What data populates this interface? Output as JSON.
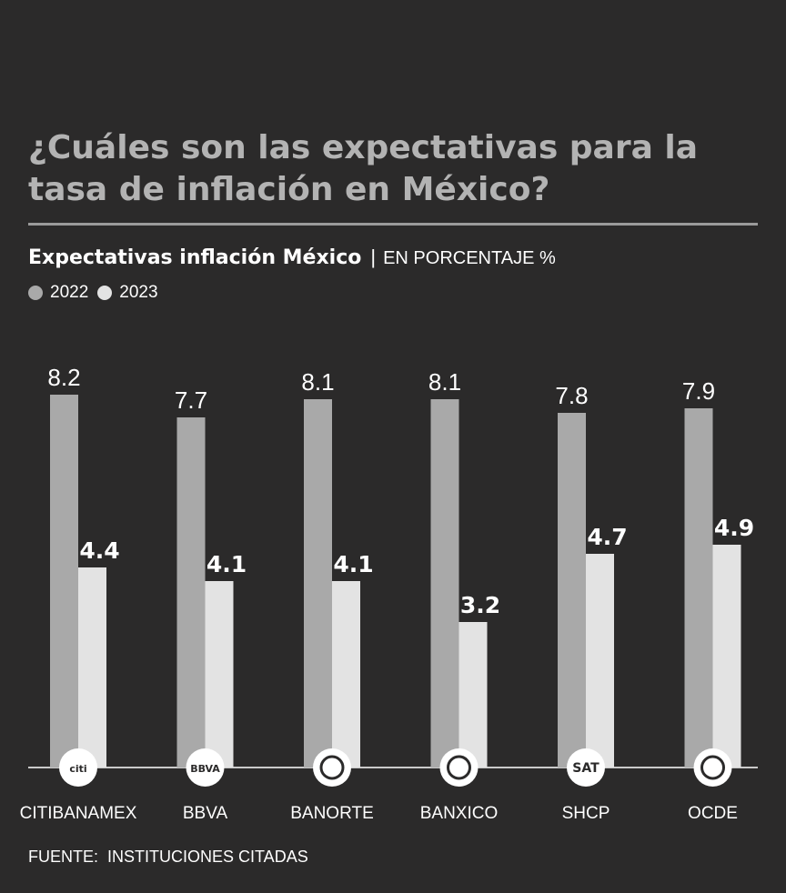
{
  "header": {
    "title": "¿Cuáles son las expectativas para la tasa de inflación en México?",
    "subtitle_strong": "Expectativas inflación México",
    "subtitle_sep": "|",
    "subtitle_unit": "EN PORCENTAJE %"
  },
  "legend": {
    "items": [
      {
        "label": "2022",
        "color": "#a9a9a9"
      },
      {
        "label": "2023",
        "color": "#e3e3e3"
      }
    ]
  },
  "footer": {
    "source_label": "FUENTE:",
    "source_text": "INSTITUCIONES CITADAS"
  },
  "colors": {
    "background": "#2b2a2a",
    "bar_2022": "#a9a9a9",
    "bar_2023": "#e3e3e3",
    "title": "#b3b3b3",
    "text": "#ffffff"
  },
  "chart_data": {
    "type": "bar",
    "title": "Expectativas inflación México",
    "ylabel": "EN PORCENTAJE %",
    "xlabel": "",
    "ylim": [
      0,
      8.2
    ],
    "grid": false,
    "legend_position": "top-left",
    "categories": [
      "CITIBANAMEX",
      "BBVA",
      "BANORTE",
      "BANXICO",
      "SHCP",
      "OCDE"
    ],
    "category_icons": [
      "citi-logo-icon",
      "bbva-logo-icon",
      "banorte-logo-icon",
      "banxico-logo-icon",
      "sat-logo-icon",
      "ocde-logo-icon"
    ],
    "icon_texts": [
      "citi",
      "BBVA",
      "",
      "",
      "SAT",
      ""
    ],
    "series": [
      {
        "name": "2022",
        "values": [
          8.2,
          7.7,
          8.1,
          8.1,
          7.8,
          7.9
        ],
        "labels": [
          "8.2",
          "7.7",
          "8.1",
          "8.1",
          "7.8",
          "7.9"
        ]
      },
      {
        "name": "2023",
        "values": [
          4.4,
          4.1,
          4.1,
          3.2,
          4.7,
          4.9
        ],
        "labels": [
          "4.4",
          "4.1",
          "4.1",
          "3.2",
          "4.7",
          "4.9"
        ]
      }
    ]
  }
}
